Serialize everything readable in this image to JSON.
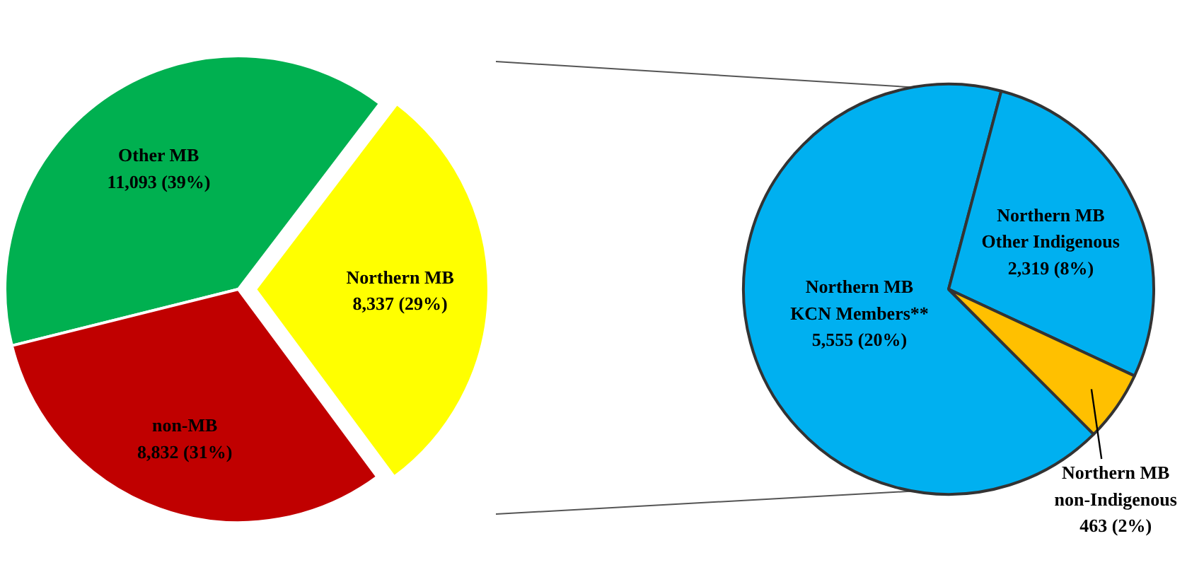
{
  "chart_data": [
    {
      "type": "pie",
      "categories": [
        "Other MB",
        "Northern MB",
        "non-MB"
      ],
      "values": [
        11093,
        8337,
        8832
      ],
      "colors": [
        "#00b050",
        "#ffff00",
        "#c00000"
      ],
      "value_labels": [
        "11,093 (39%)",
        "8,337 (29%)",
        "8,832 (31%)"
      ]
    },
    {
      "type": "pie",
      "categories": [
        "Northern MB\nKCN Members**",
        "Northern MB\nOther Indigenous",
        "Northern MB\nnon-Indigenous"
      ],
      "values": [
        5555,
        2319,
        463
      ],
      "colors": [
        "#00b0f0",
        "#00b0f0",
        "#ffc000"
      ],
      "value_labels": [
        "5,555 (20%)",
        "2,319 (8%)",
        "463 (2%)"
      ]
    }
  ]
}
